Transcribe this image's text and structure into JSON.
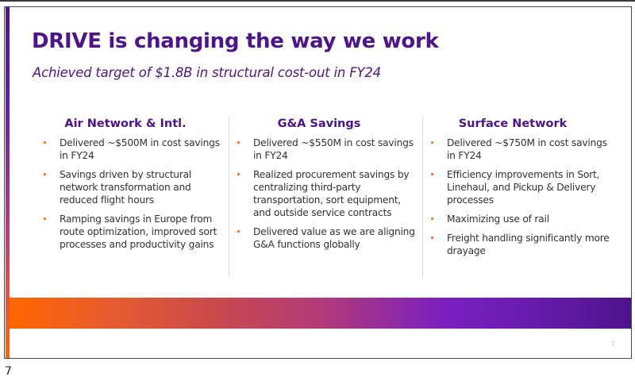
{
  "slide": {
    "title": "DRIVE is changing the way we work",
    "subtitle": "Achieved target of $1.8B in structural cost-out in FY24",
    "columns": [
      {
        "heading": "Air Network & Intl.",
        "bullets": [
          "Delivered ~$500M in cost savings in FY24",
          "Savings driven by structural network transformation and reduced flight hours",
          "Ramping savings in Europe from route optimization, improved sort processes and productivity gains"
        ]
      },
      {
        "heading": "G&A Savings",
        "bullets": [
          "Delivered ~$550M in cost savings in FY24",
          "Realized procurement savings by centralizing third-party transportation, sort equipment, and outside service contracts",
          "Delivered value as we are aligning G&A functions globally"
        ]
      },
      {
        "heading": "Surface Network",
        "bullets": [
          "Delivered ~$750M in cost savings in FY24",
          "Efficiency improvements in Sort, Linehaul, and Pickup & Delivery processes",
          "Maximizing use of rail",
          "Freight handling significantly more drayage"
        ]
      }
    ],
    "slide_page_number": "7"
  },
  "page_number": "7",
  "colors": {
    "brand_purple": "#4d148c",
    "brand_orange": "#ff6600",
    "bullet_orange": "#ff6200",
    "body_text": "#333333",
    "divider": "#dcdcdc"
  }
}
